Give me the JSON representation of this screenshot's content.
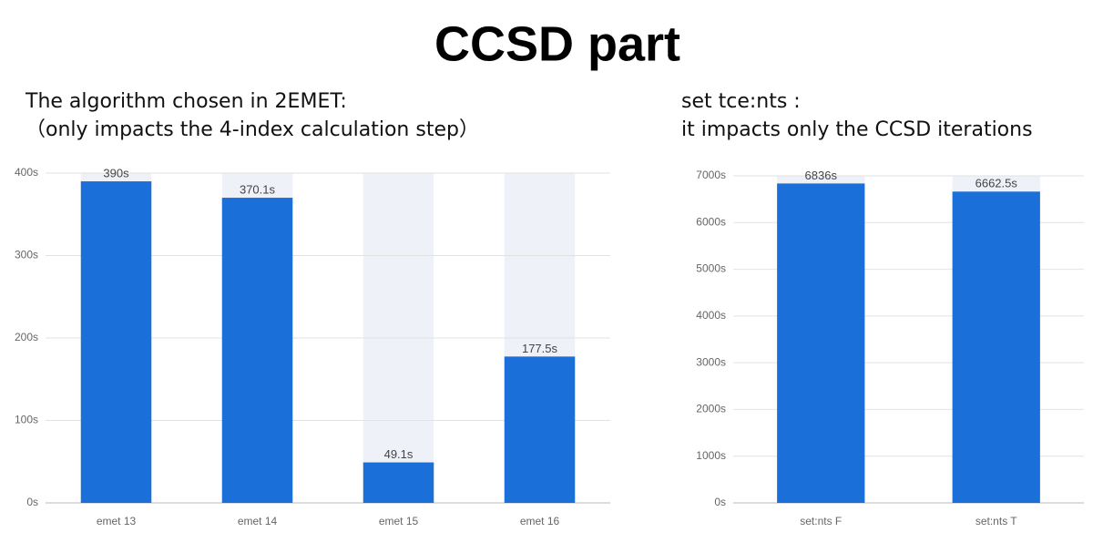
{
  "title": "CCSD part",
  "chart_data": [
    {
      "type": "bar",
      "title": "The algorithm chosen in 2EMET:",
      "subtitle": "（only impacts the 4-index calculation step）",
      "categories": [
        "emet 13",
        "emet 14",
        "emet 15",
        "emet 16"
      ],
      "values": [
        390,
        370.1,
        49.1,
        177.5
      ],
      "value_labels": [
        "390s",
        "370.1s",
        "49.1s",
        "177.5s"
      ],
      "color": "#1a6fd8",
      "ylim": [
        0,
        400
      ],
      "yticks": [
        {
          "value": 0,
          "label": "0s"
        },
        {
          "value": 100,
          "label": "100s"
        },
        {
          "value": 200,
          "label": "200s"
        },
        {
          "value": 300,
          "label": "300s"
        },
        {
          "value": 400,
          "label": "400s"
        }
      ],
      "grid": true
    },
    {
      "type": "bar",
      "title": "set tce:nts :",
      "subtitle": "it impacts only the CCSD iterations",
      "categories": [
        "set:nts F",
        "set:nts T"
      ],
      "values": [
        6836,
        6662.5
      ],
      "value_labels": [
        "6836s",
        "6662.5s"
      ],
      "color": "#1a6fd8",
      "ylim": [
        0,
        7000
      ],
      "yticks": [
        {
          "value": 0,
          "label": "0s"
        },
        {
          "value": 1000,
          "label": "1000s"
        },
        {
          "value": 2000,
          "label": "2000s"
        },
        {
          "value": 3000,
          "label": "3000s"
        },
        {
          "value": 4000,
          "label": "4000s"
        },
        {
          "value": 5000,
          "label": "5000s"
        },
        {
          "value": 6000,
          "label": "6000s"
        },
        {
          "value": 7000,
          "label": "7000s"
        }
      ],
      "grid": true
    }
  ]
}
